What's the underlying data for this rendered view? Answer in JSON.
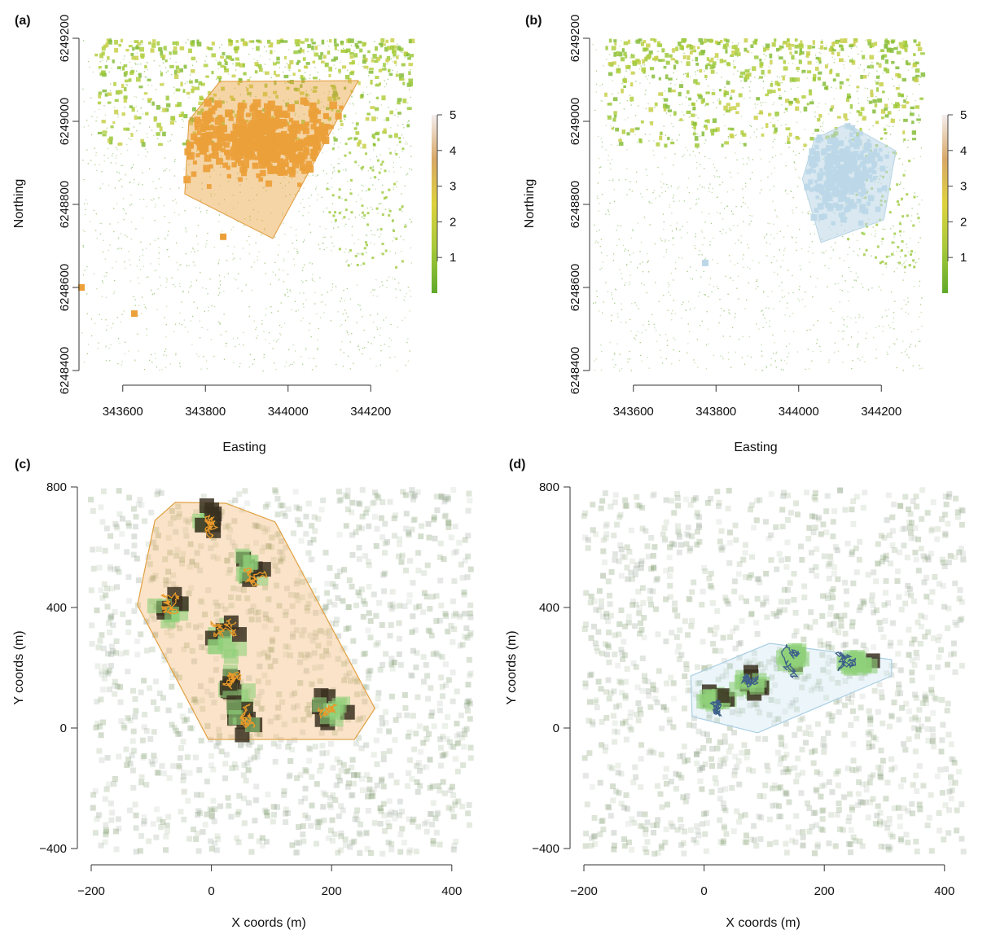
{
  "chart_data": [
    {
      "panel": "(a)",
      "type": "scatter",
      "xlabel": "Easting",
      "ylabel": "Northing",
      "xlim": [
        343500,
        344300
      ],
      "ylim": [
        6248400,
        6249200
      ],
      "xticks": [
        343600,
        343800,
        344000,
        344200
      ],
      "yticks": [
        6248400,
        6248600,
        6248800,
        6249000,
        6249200
      ],
      "colorbar": {
        "ticks": [
          1,
          2,
          3,
          4,
          5
        ],
        "range": [
          0,
          5
        ],
        "colors": [
          "#5fa82a",
          "#a6c93a",
          "#ddd23c",
          "#d9a866",
          "#f4eeee"
        ]
      },
      "hull_color": "#e8a13a",
      "hull": [
        [
          343835,
          6249096
        ],
        [
          344170,
          6249098
        ],
        [
          343963,
          6248718
        ],
        [
          343750,
          6248825
        ],
        [
          343760,
          6249002
        ]
      ],
      "outliers": [
        [
          343500,
          6248600
        ],
        [
          343628,
          6248537
        ],
        [
          343843,
          6248722
        ]
      ],
      "cluster_center": [
        343990,
        6248950
      ]
    },
    {
      "panel": "(b)",
      "type": "scatter",
      "xlabel": "Easting",
      "ylabel": "Northing",
      "xlim": [
        343500,
        344300
      ],
      "ylim": [
        6248400,
        6249200
      ],
      "xticks": [
        343600,
        343800,
        344000,
        344200
      ],
      "yticks": [
        6248400,
        6248600,
        6248800,
        6249000,
        6249200
      ],
      "colorbar": {
        "ticks": [
          1,
          2,
          3,
          4,
          5
        ],
        "range": [
          0,
          5
        ],
        "colors": [
          "#5fa82a",
          "#a6c93a",
          "#ddd23c",
          "#d9a866",
          "#f4eeee"
        ]
      },
      "hull_color": "#b9d6e6",
      "hull": [
        [
          344117,
          6248994
        ],
        [
          344235,
          6248929
        ],
        [
          344206,
          6248763
        ],
        [
          344054,
          6248708
        ],
        [
          344009,
          6248861
        ],
        [
          344039,
          6248959
        ]
      ],
      "outliers": [
        [
          343774,
          6248659
        ]
      ],
      "cluster_center": [
        344110,
        6248880
      ]
    },
    {
      "panel": "(c)",
      "type": "scatter",
      "xlabel": "X coords (m)",
      "ylabel": "Y coords (m)",
      "xlim": [
        -205,
        427
      ],
      "ylim": [
        -410,
        800
      ],
      "xticks": [
        -200,
        0,
        200,
        400
      ],
      "yticks": [
        -400,
        0,
        400,
        800
      ],
      "hull_color": "#f0b060",
      "track_color": "#e89a2a",
      "hull": [
        [
          -94,
          689
        ],
        [
          -60,
          749
        ],
        [
          24,
          746
        ],
        [
          106,
          684
        ],
        [
          272,
          65
        ],
        [
          238,
          -38
        ],
        [
          -5,
          -38
        ],
        [
          -123,
          408
        ]
      ],
      "cluster_centers": [
        [
          0,
          680
        ],
        [
          -70,
          380
        ],
        [
          20,
          300
        ],
        [
          30,
          150
        ],
        [
          50,
          30
        ],
        [
          200,
          60
        ],
        [
          60,
          520
        ]
      ]
    },
    {
      "panel": "(d)",
      "type": "scatter",
      "xlabel": "X coords (m)",
      "ylabel": "Y coords (m)",
      "xlim": [
        -205,
        427
      ],
      "ylim": [
        -410,
        800
      ],
      "xticks": [
        -200,
        0,
        200,
        400
      ],
      "yticks": [
        -400,
        0,
        400,
        800
      ],
      "hull_color": "#c9e1ee",
      "track_color": "#3d5f8a",
      "hull": [
        [
          -22,
          173
        ],
        [
          109,
          281
        ],
        [
          312,
          227
        ],
        [
          312,
          173
        ],
        [
          89,
          -16
        ],
        [
          -20,
          38
        ]
      ],
      "cluster_centers": [
        [
          20,
          90
        ],
        [
          80,
          150
        ],
        [
          150,
          230
        ],
        [
          250,
          210
        ]
      ]
    }
  ]
}
